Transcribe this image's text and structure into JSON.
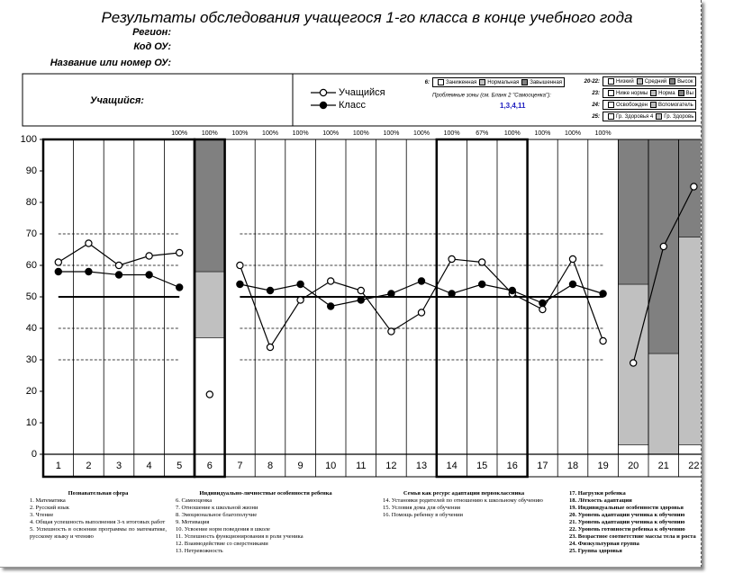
{
  "header": {
    "title": "Результаты обследования учащегося 1-го класса в конце учебного года",
    "fields": [
      "Регион:",
      "Код ОУ:",
      "Название или номер ОУ:"
    ]
  },
  "info_box": {
    "student_label": "Учащийся:",
    "zones_left": [
      {
        "key": "6:",
        "items": [
          "Заниженная",
          "Нормальная",
          "Завышенная"
        ]
      }
    ],
    "problem_zones_label": "Проблемные зоны (см. Бланк 2 \"Самооценка\"):",
    "problem_zones": "1,3,4,11",
    "zones_right": [
      {
        "key": "20-22:",
        "items": [
          "Низкий",
          "Средний",
          "Высок"
        ]
      },
      {
        "key": "23:",
        "items": [
          "Ниже нормы",
          "Норма",
          "Вы"
        ]
      },
      {
        "key": "24:",
        "items": [
          "Освобожден",
          "Вспомогатель"
        ]
      },
      {
        "key": "25:",
        "items": [
          "Гр. Здоровья 4",
          "Гр. Здоровь"
        ]
      }
    ]
  },
  "chart_data": {
    "type": "line",
    "categories": [
      "1",
      "2",
      "3",
      "4",
      "5",
      "6",
      "7",
      "8",
      "9",
      "10",
      "11",
      "12",
      "13",
      "14",
      "15",
      "16",
      "17",
      "18",
      "19",
      "20",
      "21",
      "22"
    ],
    "top_labels": [
      null,
      null,
      null,
      null,
      "100%",
      "100%",
      "100%",
      "100%",
      "100%",
      "100%",
      "100%",
      "100%",
      "100%",
      "100%",
      "67%",
      "100%",
      "100%",
      "100%",
      "100%",
      null,
      null,
      null
    ],
    "series": [
      {
        "name": "Учащийся",
        "color": "#000000",
        "marker": "open",
        "values": [
          61,
          67,
          60,
          63,
          64,
          19,
          60,
          34,
          49,
          55,
          52,
          39,
          45,
          62,
          61,
          51,
          46,
          62,
          36,
          29,
          66,
          85
        ]
      },
      {
        "name": "Класс",
        "color": "#000000",
        "marker": "filled",
        "values": [
          58,
          58,
          57,
          57,
          53,
          null,
          54,
          52,
          54,
          47,
          49,
          51,
          55,
          51,
          54,
          52,
          48,
          54,
          51,
          null,
          null,
          null
        ]
      }
    ],
    "stacks": [
      {
        "color": "#ffffff",
        "values": [
          null,
          null,
          null,
          null,
          null,
          37,
          null,
          null,
          null,
          null,
          null,
          null,
          null,
          null,
          null,
          null,
          null,
          null,
          null,
          3,
          null,
          3
        ]
      },
      {
        "color": "#c0c0c0",
        "values": [
          null,
          null,
          null,
          null,
          null,
          21,
          null,
          null,
          null,
          null,
          null,
          null,
          null,
          null,
          null,
          null,
          null,
          null,
          null,
          51,
          32,
          66
        ]
      },
      {
        "color": "#808080",
        "values": [
          null,
          null,
          null,
          null,
          null,
          42,
          null,
          null,
          null,
          null,
          null,
          null,
          null,
          null,
          null,
          null,
          null,
          null,
          null,
          46,
          68,
          31
        ]
      }
    ],
    "reference_lines": {
      "solid": [
        50
      ],
      "dashed": [
        30,
        40,
        60,
        70
      ]
    },
    "ylim": [
      0,
      100
    ],
    "yticks": [
      0,
      10,
      20,
      30,
      40,
      50,
      60,
      70,
      80,
      90,
      100
    ]
  },
  "footnotes": [
    {
      "heading": "Познавательная сфера",
      "items": [
        "1. Математика",
        "2. Русский язык",
        "3. Чтение",
        "4. Общая успешность выполнения 3-х итоговых работ",
        "5. Успешность в освоении программы по математике, русскому языку и чтению"
      ]
    },
    {
      "heading": "Индивидуально-личностные особенности ребенка",
      "items": [
        "6. Самооценка",
        "7. Отношение к школьной жизни",
        "8. Эмоциональное благополучие",
        "9. Мотивация",
        "10. Усвоение норм поведения в школе",
        "11. Успешность функционирования в роли ученика",
        "12. Взаимодействие со сверстниками",
        "13. Нетревожность"
      ]
    },
    {
      "heading": "Семья как ресурс адаптации первоклассника",
      "items": [
        "14. Установки родителей по отношению к школьному обучению",
        "15. Условия дома для обучения",
        "16. Помощь ребенку в обучении"
      ]
    },
    {
      "items": [
        "17. Нагрузки ребенка",
        "18. Лёгкость адаптации",
        "19. Индивидуальные особенности здоровья",
        "20. Уровень адаптации ученика к обучению",
        "21. Уровень адаптации ученика к обучению",
        "22. Уровень готовности ребенка к обучению",
        "23. Возрастное соответствие массы тела и роста",
        "24. Физкультурная группа",
        "25. Группа здоровья"
      ]
    }
  ]
}
